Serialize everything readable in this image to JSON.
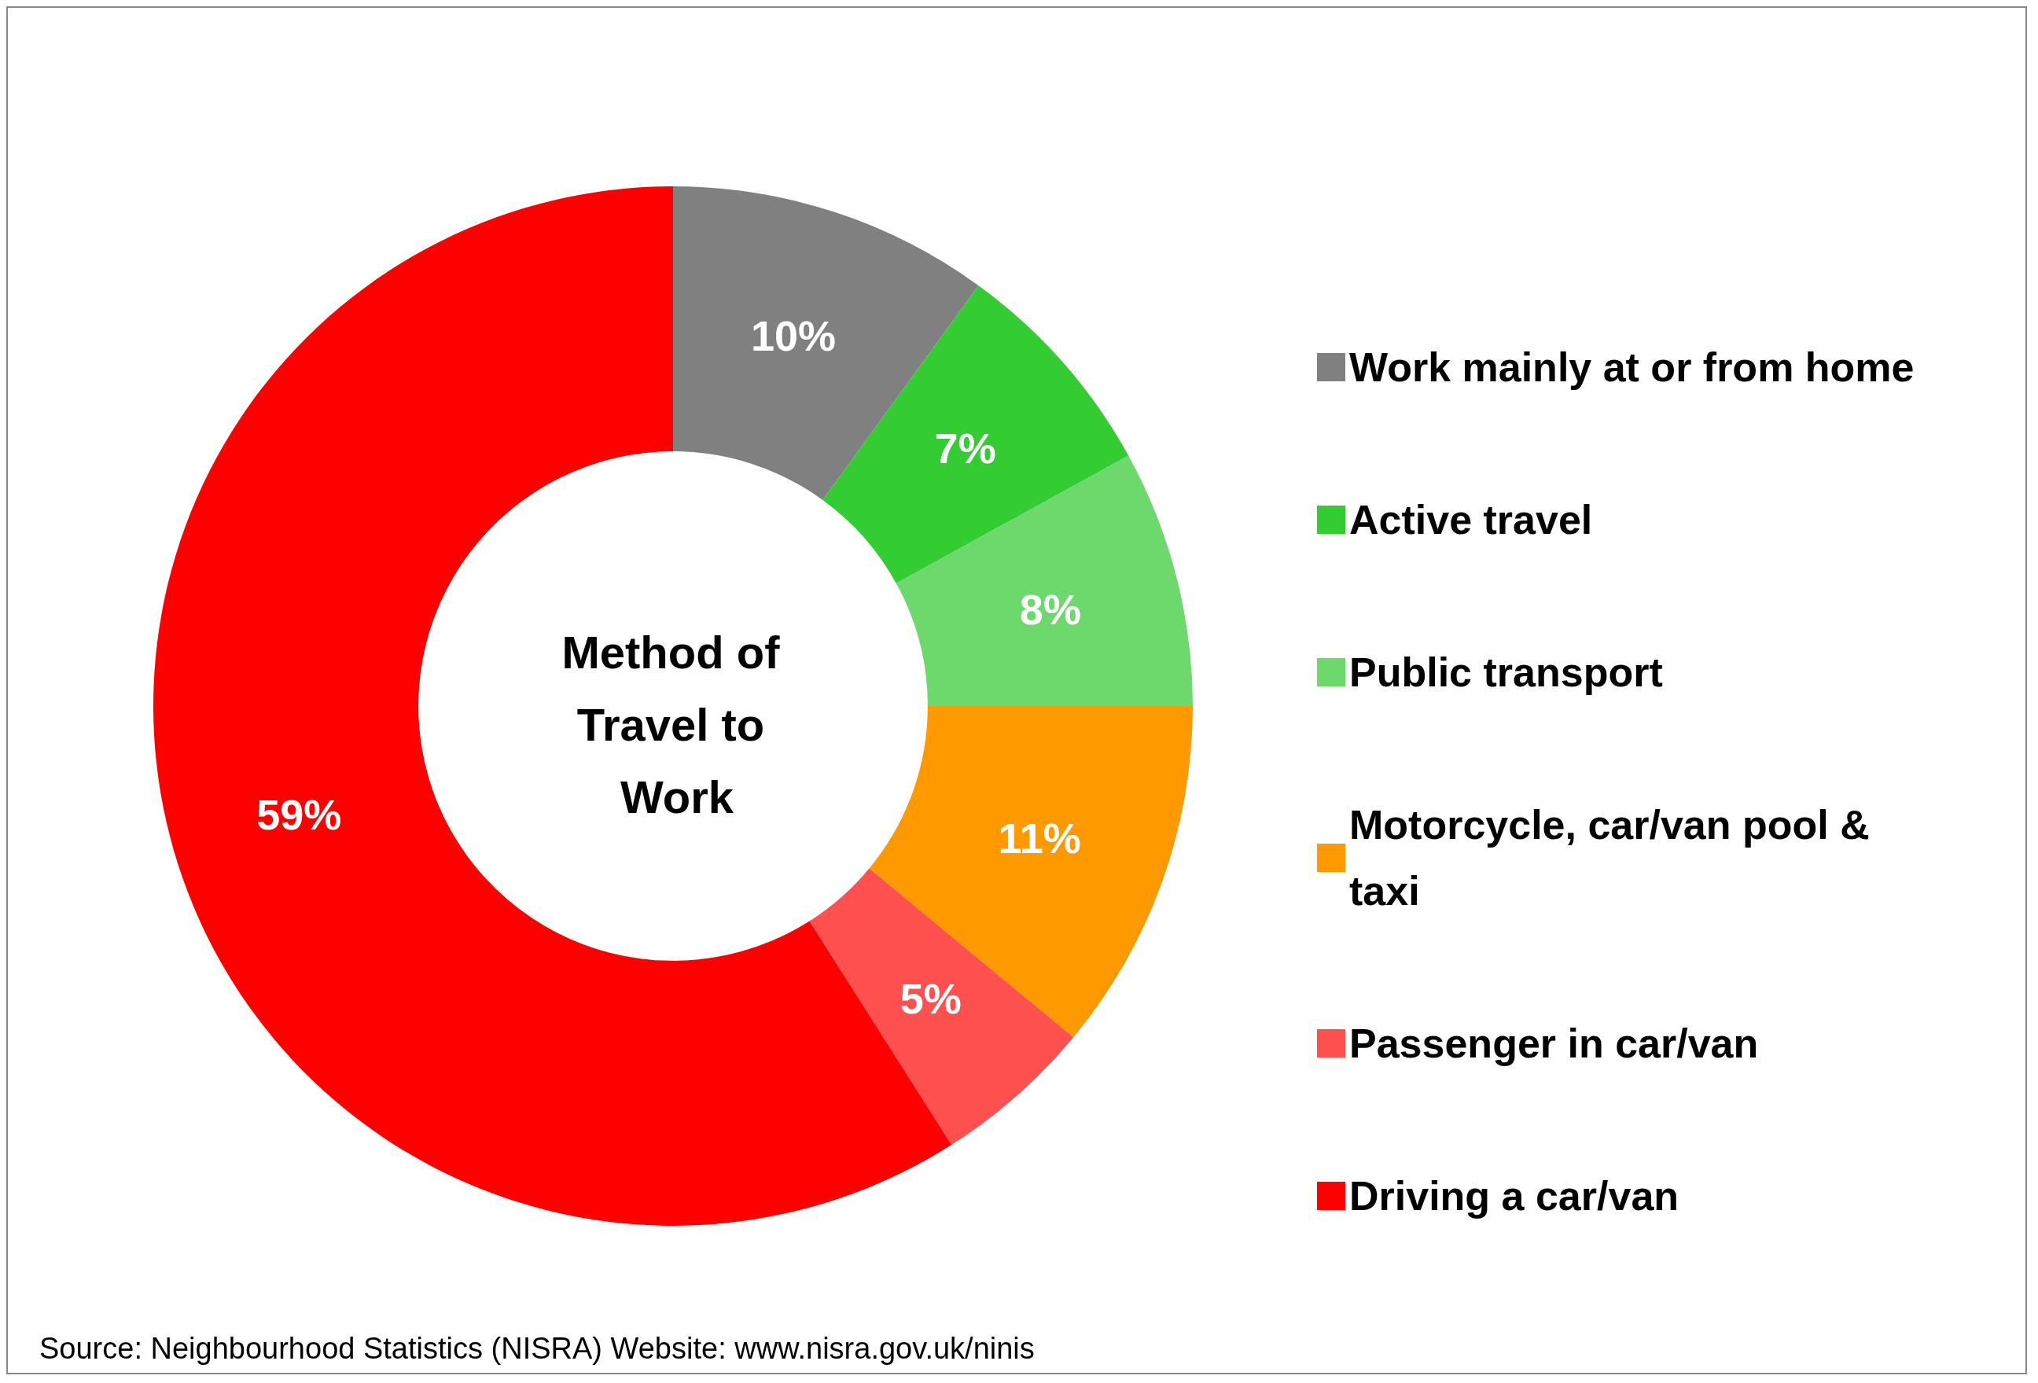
{
  "chart_data": {
    "type": "donut",
    "title": "Method of Travel to Work",
    "categories": [
      "Work mainly at or from home",
      "Active travel",
      "Public transport",
      "Motorcycle, car/van pool & taxi",
      "Passenger in car/van",
      "Driving a car/van"
    ],
    "values": [
      10,
      7,
      8,
      11,
      5,
      59
    ],
    "value_labels": [
      "10%",
      "7%",
      "8%",
      "11%",
      "5%",
      "59%"
    ],
    "colors": [
      "#808080",
      "#33cc33",
      "#6dd96d",
      "#ff9900",
      "#ff5050",
      "#ff0000"
    ],
    "legend": "right",
    "annotations": [
      "Source: Neighbourhood Statistics (NISRA) Website: www.nisra.gov.uk/ninis"
    ]
  }
}
